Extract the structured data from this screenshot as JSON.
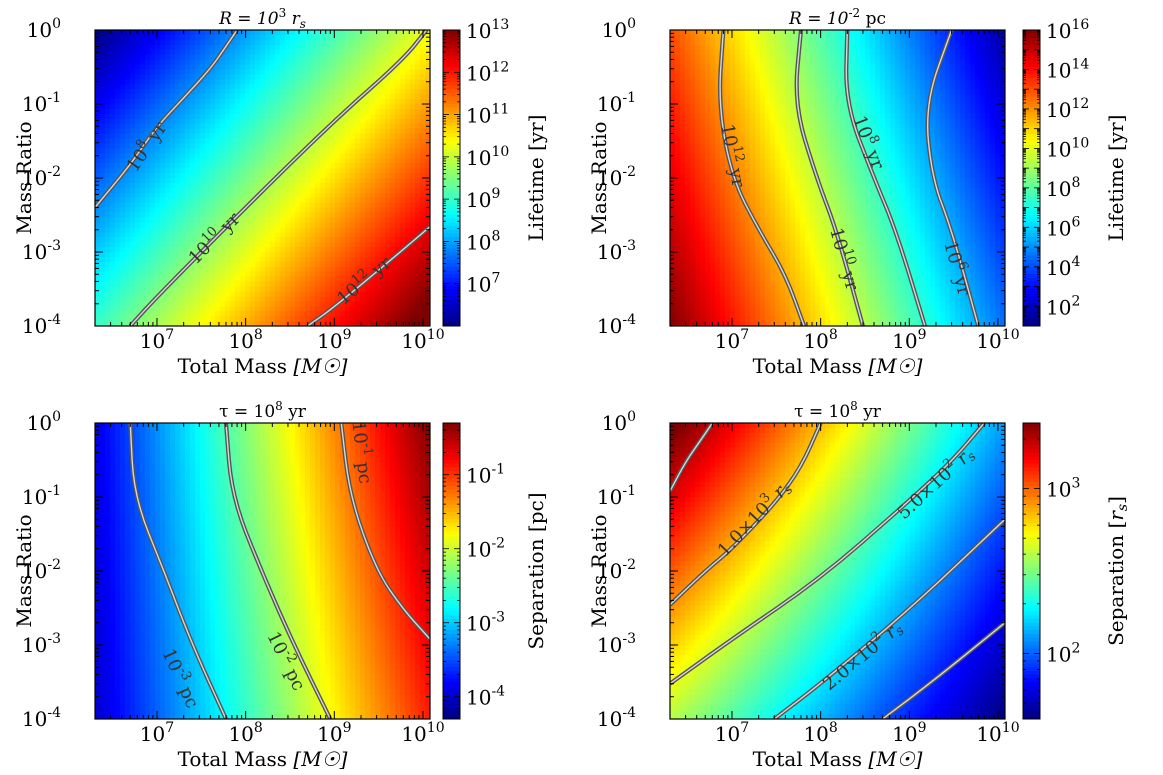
{
  "chart_data": [
    {
      "type": "heatmap",
      "title": "R = 10^3 r_s",
      "xlabel": "Total Mass [M☉]",
      "ylabel": "Mass Ratio",
      "xscale": "log",
      "yscale": "log",
      "xlim": [
        2000000.0,
        12000000000.0
      ],
      "ylim": [
        0.0001,
        1
      ],
      "x_ticks": [
        {
          "value": 10000000.0,
          "exp": "7"
        },
        {
          "value": 100000000.0,
          "exp": "8"
        },
        {
          "value": 1000000000.0,
          "exp": "9"
        },
        {
          "value": 10000000000.0,
          "exp": "10"
        }
      ],
      "y_ticks": [
        {
          "value": 0.0001,
          "exp": "-4"
        },
        {
          "value": 0.001,
          "exp": "-3"
        },
        {
          "value": 0.01,
          "exp": "-2"
        },
        {
          "value": 0.1,
          "exp": "-1"
        },
        {
          "value": 1,
          "exp": "0"
        }
      ],
      "colorbar": {
        "label": "Lifetime [yr]",
        "scale": "log",
        "range": [
          1000000.0,
          10000000000000.0
        ],
        "ticks": [
          {
            "value": 10000000.0,
            "exp": "7"
          },
          {
            "value": 100000000.0,
            "exp": "8"
          },
          {
            "value": 1000000000.0,
            "exp": "9"
          },
          {
            "value": 10000000000.0,
            "exp": "10"
          },
          {
            "value": 100000000000.0,
            "exp": "11"
          },
          {
            "value": 1000000000000.0,
            "exp": "12"
          },
          {
            "value": 10000000000000.0,
            "exp": "13"
          }
        ]
      },
      "gradient": {
        "corners_log10": {
          "top_left": 6.0,
          "top_right": 10.3,
          "bottom_left": 9.0,
          "bottom_right": 13.3
        }
      },
      "contours": [
        {
          "label": "10^8 yr",
          "level_log10": 8,
          "points": [
            [
              2000000.0,
              0.004
            ],
            [
              5000000.0,
              0.015
            ],
            [
              10000000.0,
              0.05
            ],
            [
              20000000.0,
              0.12
            ],
            [
              40000000.0,
              0.3
            ],
            [
              60000000.0,
              0.6
            ],
            [
              80000000.0,
              1
            ]
          ],
          "label_at": [
            7800000.0,
            0.026
          ]
        },
        {
          "label": "10^10 yr",
          "level_log10": 10,
          "points": [
            [
              5000000.0,
              0.0001
            ],
            [
              10000000.0,
              0.00025
            ],
            [
              100000000.0,
              0.004
            ],
            [
              1000000000.0,
              0.06
            ],
            [
              6000000000.0,
              0.4
            ],
            [
              11000000000.0,
              1
            ]
          ],
          "label_at": [
            45000000.0,
            0.0015
          ]
        },
        {
          "label": "10^12 yr",
          "level_log10": 12,
          "points": [
            [
              500000000.0,
              0.0001
            ],
            [
              1000000000.0,
              0.00018
            ],
            [
              5000000000.0,
              0.0009
            ],
            [
              12000000000.0,
              0.0022
            ]
          ],
          "label_at": [
            2200000000.0,
            0.0004
          ]
        }
      ]
    },
    {
      "type": "heatmap",
      "title": "R = 10^-2 pc",
      "xlabel": "Total Mass [M☉]",
      "ylabel": "Mass Ratio",
      "xscale": "log",
      "yscale": "log",
      "xlim": [
        2000000.0,
        12000000000.0
      ],
      "ylim": [
        0.0001,
        1
      ],
      "x_ticks": [
        {
          "value": 10000000.0,
          "exp": "7"
        },
        {
          "value": 100000000.0,
          "exp": "8"
        },
        {
          "value": 1000000000.0,
          "exp": "9"
        },
        {
          "value": 10000000000.0,
          "exp": "10"
        }
      ],
      "y_ticks": [
        {
          "value": 0.0001,
          "exp": "-4"
        },
        {
          "value": 0.001,
          "exp": "-3"
        },
        {
          "value": 0.01,
          "exp": "-2"
        },
        {
          "value": 0.1,
          "exp": "-1"
        },
        {
          "value": 1,
          "exp": "0"
        }
      ],
      "colorbar": {
        "label": "Lifetime [yr]",
        "scale": "log",
        "range": [
          10.0,
          1e+16
        ],
        "ticks": [
          {
            "value": 100.0,
            "exp": "2"
          },
          {
            "value": 10000.0,
            "exp": "4"
          },
          {
            "value": 1000000.0,
            "exp": "6"
          },
          {
            "value": 100000000.0,
            "exp": "8"
          },
          {
            "value": 10000000000.0,
            "exp": "10"
          },
          {
            "value": 1000000000000.0,
            "exp": "12"
          },
          {
            "value": 100000000000000.0,
            "exp": "14"
          },
          {
            "value": 1e+16,
            "exp": "16"
          }
        ]
      },
      "gradient": {
        "corners_log10": {
          "top_left": 13.0,
          "top_right": 1.5,
          "bottom_left": 16.0,
          "bottom_right": 4.5
        }
      },
      "contours": [
        {
          "label": "10^12 yr",
          "level_log10": 12,
          "points": [
            [
              8000000.0,
              1
            ],
            [
              7000000.0,
              0.1
            ],
            [
              10000000.0,
              0.01
            ],
            [
              20000000.0,
              0.002
            ],
            [
              40000000.0,
              0.0005
            ],
            [
              65000000.0,
              0.0001
            ]
          ],
          "label_at": [
            10000000.0,
            0.02
          ]
        },
        {
          "label": "10^10 yr",
          "level_log10": 10,
          "points": [
            [
              60000000.0,
              1
            ],
            [
              50000000.0,
              0.1
            ],
            [
              90000000.0,
              0.01
            ],
            [
              150000000.0,
              0.002
            ],
            [
              300000000.0,
              0.0001
            ]
          ],
          "label_at": [
            180000000.0,
            0.0008
          ]
        },
        {
          "label": "10^8 yr",
          "level_log10": 8,
          "points": [
            [
              200000000.0,
              1
            ],
            [
              190000000.0,
              0.1
            ],
            [
              400000000.0,
              0.01
            ],
            [
              700000000.0,
              0.002
            ],
            [
              1500000000.0,
              0.0001
            ]
          ],
          "label_at": [
            340000000.0,
            0.03
          ]
        },
        {
          "label": "10^6 yr",
          "level_log10": 6,
          "points": [
            [
              3000000000.0,
              1
            ],
            [
              1500000000.0,
              0.1
            ],
            [
              1800000000.0,
              0.01
            ],
            [
              3000000000.0,
              0.002
            ],
            [
              6000000000.0,
              0.0001
            ]
          ],
          "label_at": [
            3400000000.0,
            0.0006
          ]
        }
      ]
    },
    {
      "type": "heatmap",
      "title": "τ = 10^8 yr",
      "xlabel": "Total Mass [M☉]",
      "ylabel": "Mass Ratio",
      "xscale": "log",
      "yscale": "log",
      "xlim": [
        2000000.0,
        12000000000.0
      ],
      "ylim": [
        0.0001,
        1
      ],
      "x_ticks": [
        {
          "value": 10000000.0,
          "exp": "7"
        },
        {
          "value": 100000000.0,
          "exp": "8"
        },
        {
          "value": 1000000000.0,
          "exp": "9"
        },
        {
          "value": 10000000000.0,
          "exp": "10"
        }
      ],
      "y_ticks": [
        {
          "value": 0.0001,
          "exp": "-4"
        },
        {
          "value": 0.001,
          "exp": "-3"
        },
        {
          "value": 0.01,
          "exp": "-2"
        },
        {
          "value": 0.1,
          "exp": "-1"
        },
        {
          "value": 1,
          "exp": "0"
        }
      ],
      "colorbar": {
        "label": "Separation [pc]",
        "scale": "log",
        "range": [
          5e-05,
          0.5
        ],
        "ticks": [
          {
            "value": 0.0001,
            "exp": "-4"
          },
          {
            "value": 0.001,
            "exp": "-3"
          },
          {
            "value": 0.01,
            "exp": "-2"
          },
          {
            "value": 0.1,
            "exp": "-1"
          }
        ]
      },
      "gradient": {
        "corners_log10": {
          "top_left": -3.9,
          "top_right": -0.3,
          "bottom_left": -4.0,
          "bottom_right": -0.9
        }
      },
      "contours": [
        {
          "label": "10^-3 pc",
          "level_log10": -3,
          "points": [
            [
              5000000.0,
              1
            ],
            [
              5500000.0,
              0.1
            ],
            [
              12000000.0,
              0.01
            ],
            [
              25000000.0,
              0.001
            ],
            [
              60000000.0,
              0.0001
            ]
          ],
          "label_at": [
            18000000.0,
            0.00035
          ]
        },
        {
          "label": "10^-2 pc",
          "level_log10": -2,
          "points": [
            [
              60000000.0,
              1
            ],
            [
              70000000.0,
              0.1
            ],
            [
              150000000.0,
              0.01
            ],
            [
              350000000.0,
              0.001
            ],
            [
              900000000.0,
              0.0001
            ]
          ],
          "label_at": [
            280000000.0,
            0.0006
          ]
        },
        {
          "label": "10^-1 pc",
          "level_log10": -1,
          "points": [
            [
              1200000000.0,
              1
            ],
            [
              1500000000.0,
              0.1
            ],
            [
              3000000000.0,
              0.01
            ],
            [
              6000000000.0,
              0.003
            ],
            [
              12000000000.0,
              0.0012
            ]
          ],
          "label_at": [
            2000000000.0,
            0.4
          ]
        }
      ]
    },
    {
      "type": "heatmap",
      "title": "τ = 10^8 yr",
      "xlabel": "Total Mass [M☉]",
      "ylabel": "Mass Ratio",
      "xscale": "log",
      "yscale": "log",
      "xlim": [
        2000000.0,
        12000000000.0
      ],
      "ylim": [
        0.0001,
        1
      ],
      "x_ticks": [
        {
          "value": 10000000.0,
          "exp": "7"
        },
        {
          "value": 100000000.0,
          "exp": "8"
        },
        {
          "value": 1000000000.0,
          "exp": "9"
        },
        {
          "value": 10000000000.0,
          "exp": "10"
        }
      ],
      "y_ticks": [
        {
          "value": 0.0001,
          "exp": "-4"
        },
        {
          "value": 0.001,
          "exp": "-3"
        },
        {
          "value": 0.01,
          "exp": "-2"
        },
        {
          "value": 0.1,
          "exp": "-1"
        },
        {
          "value": 1,
          "exp": "0"
        }
      ],
      "colorbar": {
        "label": "Separation [r_s]",
        "scale": "log",
        "range": [
          40,
          2500
        ],
        "ticks": [
          {
            "value": 100,
            "exp": "2"
          },
          {
            "value": 1000,
            "exp": "3"
          }
        ]
      },
      "gradient": {
        "corners_log10": {
          "top_left": 3.45,
          "top_right": 2.1,
          "bottom_left": 2.6,
          "bottom_right": 1.6
        }
      },
      "contours": [
        {
          "label": "",
          "level_log10": 3.3,
          "points": [
            [
              2000000.0,
              0.12
            ],
            [
              3000000.0,
              0.3
            ],
            [
              4500000.0,
              0.6
            ],
            [
              6000000.0,
              1
            ]
          ],
          "label_at": null
        },
        {
          "label": "1.0×10^3 r_s",
          "level_log10": 3,
          "points": [
            [
              2000000.0,
              0.0035
            ],
            [
              5000000.0,
              0.01
            ],
            [
              10000000.0,
              0.02
            ],
            [
              30000000.0,
              0.08
            ],
            [
              60000000.0,
              0.25
            ],
            [
              100000000.0,
              1
            ]
          ],
          "label_at": [
            18000000.0,
            0.05
          ]
        },
        {
          "label": "5.0×10^2 r_s",
          "level_log10": 2.7,
          "points": [
            [
              2000000.0,
              0.0003
            ],
            [
              10000000.0,
              0.0012
            ],
            [
              100000000.0,
              0.008
            ],
            [
              800000000.0,
              0.07
            ],
            [
              3000000000.0,
              0.3
            ],
            [
              7000000000.0,
              1
            ]
          ],
          "label_at": [
            2000000000.0,
            0.15
          ]
        },
        {
          "label": "2.0×10^2 r_s",
          "level_log10": 2.3,
          "points": [
            [
              30000000.0,
              0.0001
            ],
            [
              100000000.0,
              0.0003
            ],
            [
              1000000000.0,
              0.003
            ],
            [
              12000000000.0,
              0.05
            ]
          ],
          "label_at": [
            300000000.0,
            0.0007
          ]
        },
        {
          "label": "",
          "level_log10": 2.0,
          "points": [
            [
              500000000.0,
              0.0001
            ],
            [
              2000000000.0,
              0.00035
            ],
            [
              12000000000.0,
              0.002
            ]
          ],
          "label_at": null
        }
      ]
    }
  ],
  "colormap": [
    "#00007f",
    "#0000ff",
    "#007fff",
    "#00ffff",
    "#7fff7f",
    "#ffff00",
    "#ff7f00",
    "#ff0000",
    "#7f0000"
  ]
}
